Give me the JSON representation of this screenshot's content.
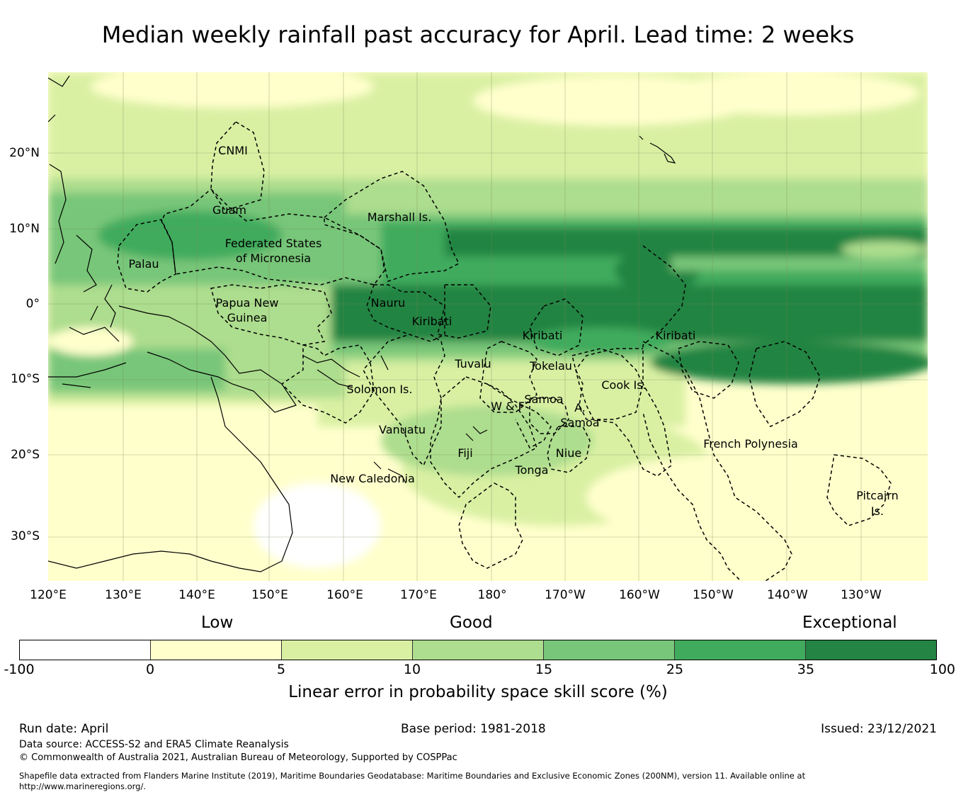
{
  "title": "Median weekly rainfall past accuracy for April. Lead time: 2 weeks",
  "map": {
    "lat_labels": [
      "20°N",
      "10°N",
      "0°",
      "10°S",
      "20°S",
      "30°S"
    ],
    "lon_labels": [
      "120°E",
      "130°E",
      "140°E",
      "150°E",
      "160°E",
      "170°E",
      "180°",
      "170°W",
      "160°W",
      "150°W",
      "140°W",
      "130°W"
    ],
    "region_labels": [
      "CNMI",
      "Guam",
      "Marshall Is.",
      "Federated States",
      "of Micronesia",
      "Palau",
      "Papua New",
      "Guinea",
      "Nauru",
      "Kiribati",
      "Kiribati",
      "Kiribati",
      "Tuvalu",
      "Tokelau",
      "Solomon Is.",
      "Samoa",
      "W & F",
      "A.",
      "Samoa",
      "Cook Is.",
      "Vanuatu",
      "Fiji",
      "Niue",
      "Tonga",
      "French Polynesia",
      "New Caledonia",
      "Pitcairn",
      "Is."
    ]
  },
  "legend": {
    "categories": [
      "Low",
      "Good",
      "Exceptional"
    ],
    "colors": [
      "#ffffff",
      "#ffffcc",
      "#d9f0a3",
      "#addd8e",
      "#78c679",
      "#41ab5d",
      "#238443"
    ],
    "ticks": [
      "-100",
      "0",
      "5",
      "10",
      "15",
      "25",
      "35",
      "100"
    ],
    "axis_title": "Linear error in probability space skill score (%)"
  },
  "footer": {
    "run_date": "Run date: April",
    "base_period": "Base period: 1981-2018",
    "issued": "Issued: 23/12/2021",
    "data_source": "Data source: ACCESS-S2 and ERA5 Climate Reanalysis",
    "copyright": "© Commonwealth of Australia 2021, Australian Bureau of Meteorology, Supported by COSPPac",
    "shapefile": "Shapefile data extracted from Flanders Marine Institute (2019), Maritime Boundaries Geodatabase: Maritime Boundaries and Exclusive Economic Zones (200NM), version 11. Available online at",
    "url": "http://www.marineregions.org/."
  }
}
